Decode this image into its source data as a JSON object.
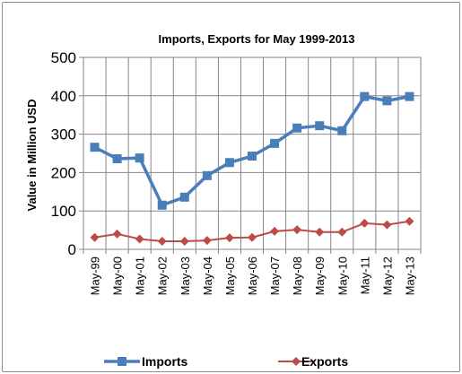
{
  "chart_data": {
    "type": "line",
    "title": "Imports, Exports for May 1999-2013",
    "xlabel": "",
    "ylabel": "Value in  Million  USD",
    "ylim": [
      0,
      500
    ],
    "yticks": [
      0,
      100,
      200,
      300,
      400,
      500
    ],
    "grid": true,
    "legend_position": "bottom",
    "categories": [
      "May-99",
      "May-00",
      "May-01",
      "May-02",
      "May-03",
      "May-04",
      "May-05",
      "May-06",
      "May-07",
      "May-08",
      "May-09",
      "May-10",
      "May-11",
      "May-12",
      "May-13"
    ],
    "series": [
      {
        "name": "Imports",
        "color": "#4a7ebb",
        "marker": "square",
        "values": [
          266,
          236,
          238,
          115,
          136,
          192,
          226,
          243,
          276,
          316,
          322,
          309,
          398,
          387,
          398
        ]
      },
      {
        "name": "Exports",
        "color": "#be4b48",
        "marker": "diamond",
        "values": [
          31,
          40,
          27,
          21,
          21,
          23,
          30,
          31,
          47,
          51,
          45,
          45,
          68,
          64,
          73
        ]
      }
    ]
  }
}
